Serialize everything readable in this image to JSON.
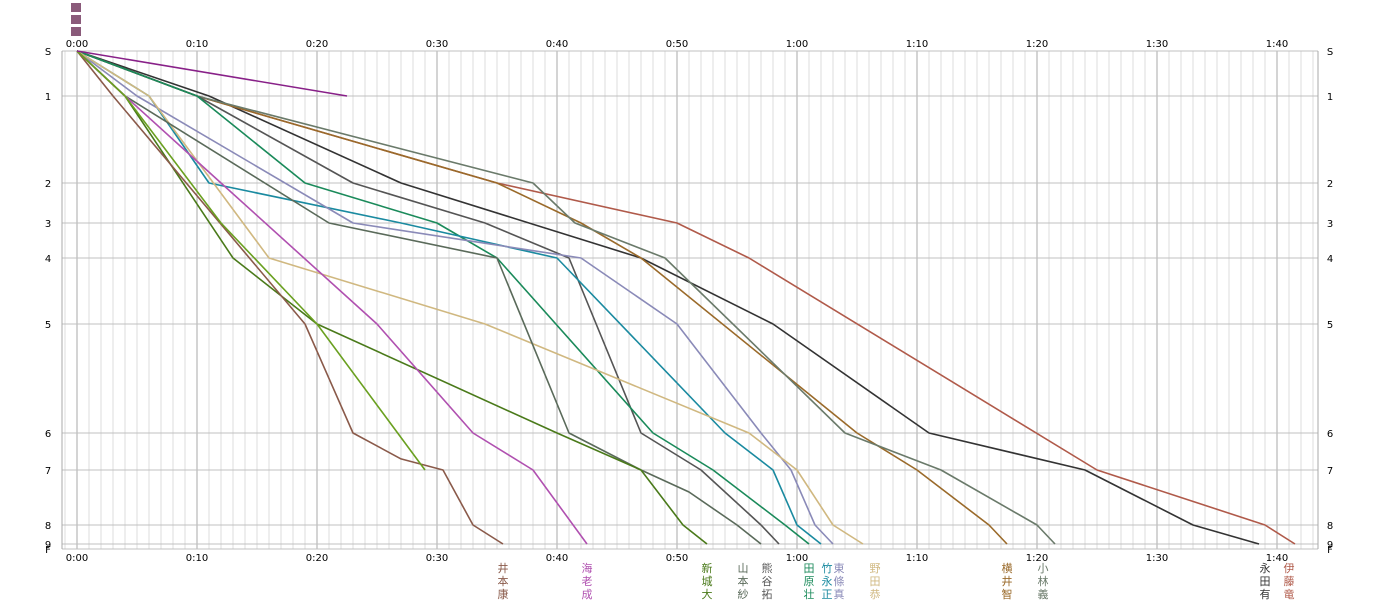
{
  "chart_data": {
    "type": "line",
    "title": "",
    "xlabel": "",
    "ylabel": "",
    "x_unit": "minutes",
    "x_ticks": [
      "0:00",
      "0:10",
      "0:20",
      "0:30",
      "0:40",
      "0:50",
      "1:00",
      "1:10",
      "1:20",
      "1:30",
      "1:40"
    ],
    "y_ticks": [
      "S",
      "1",
      "2",
      "3",
      "4",
      "5",
      "6",
      "7",
      "8",
      "9",
      "F"
    ],
    "grid": "on",
    "series": [
      {
        "name": "永田有",
        "color": "#333333",
        "x": [
          0,
          11,
          27,
          47,
          58,
          71,
          84,
          93,
          98.5
        ],
        "y": [
          0,
          1,
          2,
          4,
          5,
          6,
          7,
          8,
          9
        ]
      },
      {
        "name": "伊藤竜",
        "color": "#b05a4a",
        "x": [
          0,
          10,
          35,
          50,
          56,
          85,
          99,
          101.5
        ],
        "y": [
          0,
          1,
          2,
          3,
          4,
          7,
          8,
          9
        ]
      },
      {
        "name": "横井智",
        "color": "#9a6a2a",
        "x": [
          0,
          10,
          35,
          42,
          47,
          65,
          70,
          76,
          77.5
        ],
        "y": [
          0,
          1,
          2,
          3,
          4,
          6,
          7,
          8,
          9
        ]
      },
      {
        "name": "小林義",
        "color": "#6a7a6a",
        "x": [
          0,
          10,
          38,
          41.5,
          49,
          64,
          72,
          80,
          81.5
        ],
        "y": [
          0,
          1,
          2,
          3,
          4,
          6,
          7,
          8,
          9
        ]
      },
      {
        "name": "熊谷拓",
        "color": "#555555",
        "x": [
          0,
          10,
          23,
          34,
          41,
          47,
          52,
          57,
          58.5
        ],
        "y": [
          0,
          1,
          2,
          3,
          4,
          6,
          7,
          8,
          9
        ]
      },
      {
        "name": "田原壮",
        "color": "#1a8a5a",
        "x": [
          0,
          10,
          19,
          30,
          35,
          48,
          53,
          59,
          61
        ],
        "y": [
          0,
          1,
          2,
          3,
          4,
          6,
          7,
          8,
          9
        ]
      },
      {
        "name": "竹永正",
        "color": "#1a8aa0",
        "x": [
          0,
          6,
          11,
          27,
          40,
          54,
          58,
          60,
          62
        ],
        "y": [
          0,
          1,
          2,
          3,
          4,
          6,
          7,
          8,
          9
        ]
      },
      {
        "name": "東條真",
        "color": "#8a8ab8",
        "x": [
          0,
          5,
          23,
          42,
          50,
          57,
          59.5,
          61.5,
          63
        ],
        "y": [
          0,
          1,
          3,
          4,
          5,
          6,
          7,
          8,
          9
        ]
      },
      {
        "name": "野田恭",
        "color": "#d0b880",
        "x": [
          0,
          6,
          16,
          34,
          56,
          60,
          63,
          65.5
        ],
        "y": [
          0,
          1,
          4,
          5,
          6,
          7,
          8,
          9
        ]
      },
      {
        "name": "山本紗",
        "color": "#5a6a5a",
        "x": [
          0,
          4,
          21,
          35,
          41,
          47,
          51,
          55,
          57
        ],
        "y": [
          0,
          1,
          3,
          4,
          6,
          7,
          7.4,
          8,
          9
        ]
      },
      {
        "name": "新城大",
        "color": "#4a7a1a",
        "x": [
          0,
          4,
          13,
          20,
          40,
          47,
          50.5,
          52.5
        ],
        "y": [
          0,
          1,
          4,
          5,
          6,
          7,
          8,
          9
        ]
      },
      {
        "name": "海老成",
        "color": "#b050b0",
        "x": [
          0,
          4,
          12,
          25,
          33,
          38,
          42.5
        ],
        "y": [
          0,
          1,
          2,
          5,
          6,
          7,
          9
        ]
      },
      {
        "name": "井本康",
        "color": "#8a5a4a",
        "x": [
          0,
          3,
          19,
          23,
          27,
          30.5,
          33,
          35.5
        ],
        "y": [
          0,
          1,
          5,
          6,
          6.7,
          7,
          8,
          9
        ]
      },
      {
        "name": "",
        "color": "#6aa020",
        "x": [
          0,
          4,
          12,
          20,
          29
        ],
        "y": [
          0,
          1,
          3,
          5,
          7
        ]
      },
      {
        "name": "",
        "color": "#882088",
        "x": [
          0,
          22.5
        ],
        "y": [
          0,
          1
        ]
      }
    ],
    "bottom_labels": [
      {
        "x": 35.5,
        "text": "井本康",
        "color": "#8a5a4a"
      },
      {
        "x": 42.5,
        "text": "海老成",
        "color": "#b050b0"
      },
      {
        "x": 52.5,
        "text": "新城大",
        "color": "#4a7a1a"
      },
      {
        "x": 55.5,
        "text": "山本紗",
        "color": "#5a6a5a"
      },
      {
        "x": 57.5,
        "text": "熊谷拓",
        "color": "#555555"
      },
      {
        "x": 61,
        "text": "田原壮",
        "color": "#1a8a5a"
      },
      {
        "x": 62.5,
        "text": "竹永正",
        "color": "#1a8aa0"
      },
      {
        "x": 63.5,
        "text": "東條真",
        "color": "#8a8ab8"
      },
      {
        "x": 66.5,
        "text": "野田恭",
        "color": "#d0b880"
      },
      {
        "x": 77.5,
        "text": "横井智",
        "color": "#9a6a2a"
      },
      {
        "x": 80.5,
        "text": "小林義",
        "color": "#6a7a6a"
      },
      {
        "x": 99,
        "text": "永田有",
        "color": "#333333"
      },
      {
        "x": 101,
        "text": "伊藤竜",
        "color": "#b05a4a"
      }
    ]
  }
}
